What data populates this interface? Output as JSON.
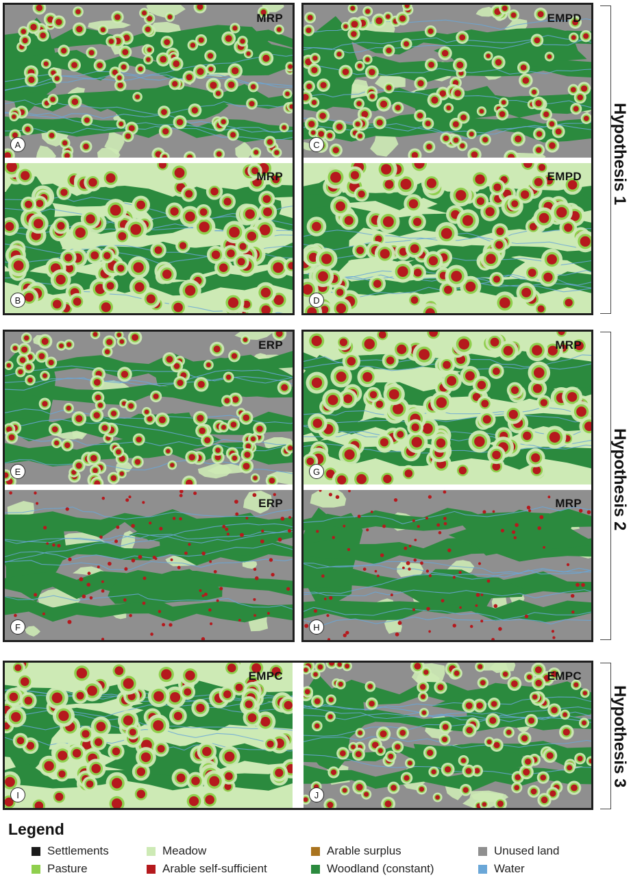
{
  "panels": [
    {
      "letter": "A",
      "scenario": "MRP",
      "variant": "gray"
    },
    {
      "letter": "B",
      "scenario": "MRP",
      "variant": "meadow"
    },
    {
      "letter": "C",
      "scenario": "EMPD",
      "variant": "gray"
    },
    {
      "letter": "D",
      "scenario": "EMPD",
      "variant": "meadow"
    },
    {
      "letter": "E",
      "scenario": "ERP",
      "variant": "gray"
    },
    {
      "letter": "F",
      "scenario": "ERP",
      "variant": "sparse"
    },
    {
      "letter": "G",
      "scenario": "MRP",
      "variant": "meadow"
    },
    {
      "letter": "H",
      "scenario": "MRP",
      "variant": "sparse"
    },
    {
      "letter": "I",
      "scenario": "EMPC",
      "variant": "meadow"
    },
    {
      "letter": "J",
      "scenario": "EMPC",
      "variant": "gray"
    }
  ],
  "hypotheses": [
    "Hypothesis 1",
    "Hypothesis 2",
    "Hypothesis 3"
  ],
  "legend": {
    "title": "Legend",
    "items": [
      {
        "label": "Settlements",
        "color": "#1a1a1a"
      },
      {
        "label": "Pasture",
        "color": "#8fcf4d"
      },
      {
        "label": "Meadow",
        "color": "#cdeab5"
      },
      {
        "label": "Arable self-sufficient",
        "color": "#b5191d"
      },
      {
        "label": "Arable surplus",
        "color": "#a9731e"
      },
      {
        "label": "Woodland (constant)",
        "color": "#2b8a3e"
      },
      {
        "label": "Unused land",
        "color": "#8f8f8f"
      },
      {
        "label": "Water",
        "color": "#6aa7d8"
      }
    ]
  },
  "colors": {
    "unused": "#8f8f8f",
    "meadow": "#cdeab5",
    "pasture": "#8fcf4d",
    "woodland": "#2b8a3e",
    "arable": "#b5191d",
    "water": "#6aa7d8"
  }
}
